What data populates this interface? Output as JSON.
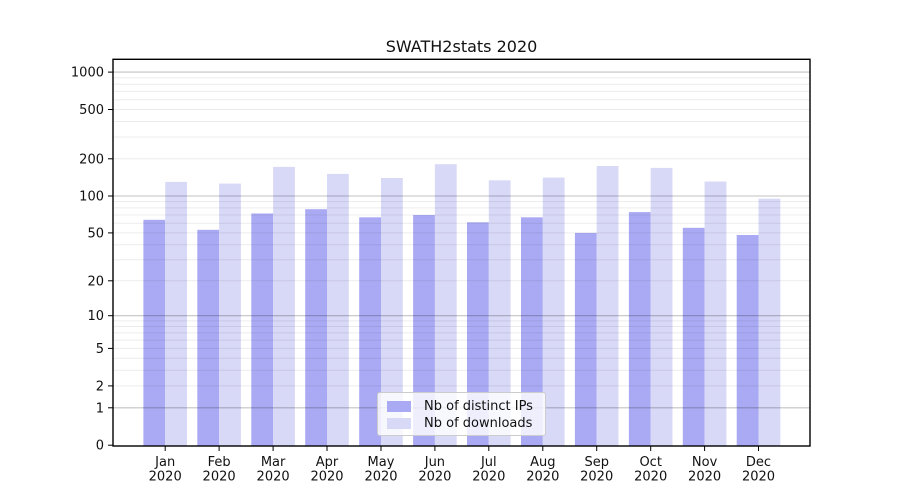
{
  "chart_data": {
    "type": "bar",
    "title": "SWATH2stats 2020",
    "categories": [
      "Jan",
      "Feb",
      "Mar",
      "Apr",
      "May",
      "Jun",
      "Jul",
      "Aug",
      "Sep",
      "Oct",
      "Nov",
      "Dec"
    ],
    "category_year": "2020",
    "series": [
      {
        "name": "Nb of distinct IPs",
        "color": "#aaaaf4",
        "values": [
          64,
          53,
          72,
          78,
          67,
          70,
          61,
          67,
          50,
          74,
          55,
          48
        ]
      },
      {
        "name": "Nb of downloads",
        "color": "#d8d8f7",
        "values": [
          130,
          126,
          172,
          151,
          140,
          181,
          134,
          141,
          175,
          169,
          131,
          95
        ]
      }
    ],
    "y_axis": {
      "scale": "log1p",
      "tick_labels": [
        "0",
        "1",
        "2",
        "5",
        "10",
        "20",
        "50",
        "100",
        "200",
        "500",
        "1000"
      ],
      "tick_values": [
        0,
        1,
        2,
        5,
        10,
        20,
        50,
        100,
        200,
        500,
        1000
      ],
      "major_grid_values": [
        1,
        10,
        100,
        1000
      ],
      "ylim": [
        0,
        1100
      ]
    },
    "x_axis": {
      "label_line1_values": [
        "Jan",
        "Feb",
        "Mar",
        "Apr",
        "May",
        "Jun",
        "Jul",
        "Aug",
        "Sep",
        "Oct",
        "Nov",
        "Dec"
      ],
      "label_line2": "2020"
    },
    "legend": {
      "position": "inside-bottom-center",
      "entries": [
        "Nb of distinct IPs",
        "Nb of downloads"
      ]
    },
    "grid": "on",
    "colors": {
      "background": "#ffffff",
      "spine": "#000000",
      "major_grid": "#c2c2c2",
      "minor_grid": "#ececec",
      "text": "#111111"
    }
  }
}
